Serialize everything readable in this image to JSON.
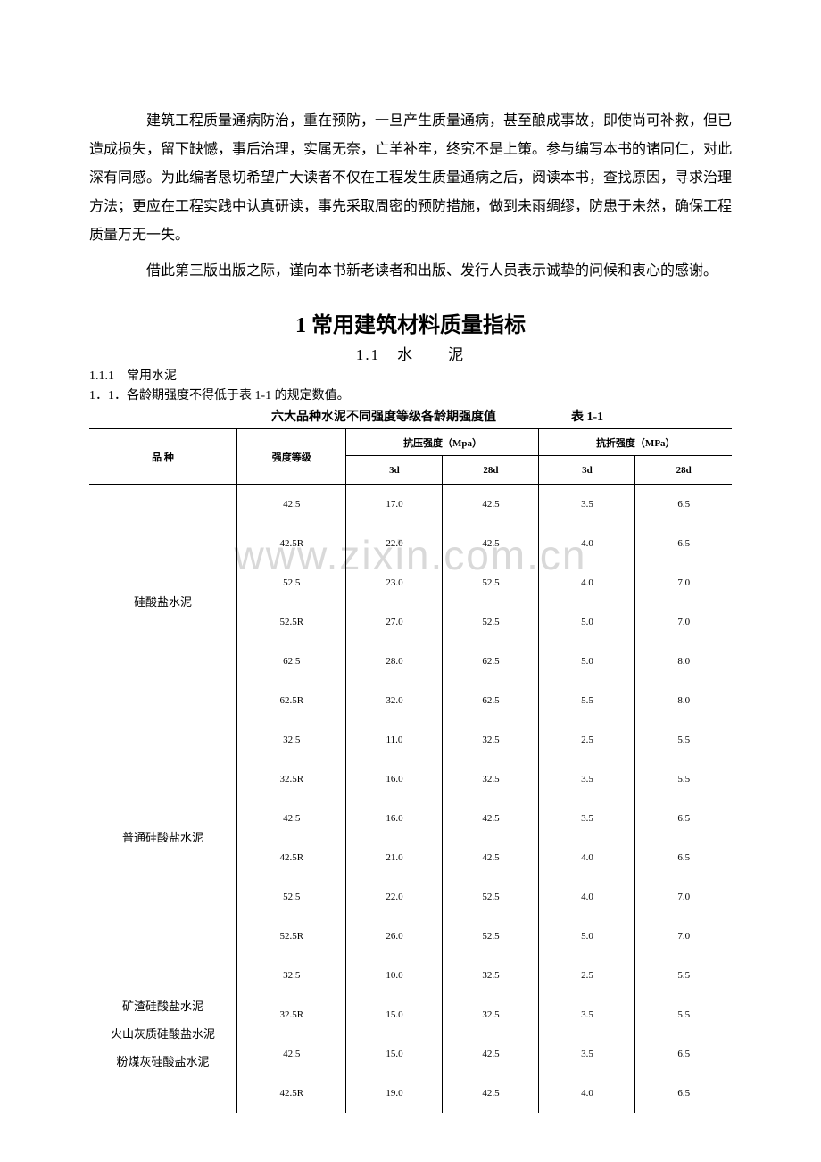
{
  "paragraphs": {
    "p1": "建筑工程质量通病防治，重在预防，一旦产生质量通病，甚至酿成事故，即使尚可补救，但已造成损失，留下缺憾，事后治理，实属无奈，亡羊补牢，终究不是上策。参与编写本书的诸同仁，对此深有同感。为此编者恳切希望广大读者不仅在工程发生质量通病之后，阅读本书，查找原因，寻求治理方法；更应在工程实践中认真研读，事先采取周密的预防措施，做到未雨绸缪，防患于未然，确保工程质量万无一失。",
    "p2": "借此第三版出版之际，谨向本书新老读者和出版、发行人员表示诚挚的问候和衷心的感谢。"
  },
  "headings": {
    "h1": "1 常用建筑材料质量指标",
    "h2": "1.1　水　　泥",
    "h3": "1.1.1　常用水泥",
    "h3line": "1．1．各龄期强度不得低于表 1-1 的规定数值。"
  },
  "table": {
    "title": "六大品种水泥不同强度等级各龄期强度值",
    "code": "表 1-1",
    "header": {
      "variety": "品  种",
      "grade": "强度等级",
      "comp": "抗压强度（Mpa）",
      "flex": "抗折强度（MPa）",
      "d3": "3d",
      "d28": "28d"
    },
    "sections": [
      {
        "variety_lines": [
          "硅酸盐水泥"
        ],
        "rows": [
          {
            "grade": "42.5",
            "c3": "17.0",
            "c28": "42.5",
            "f3": "3.5",
            "f28": "6.5"
          },
          {
            "grade": "42.5R",
            "c3": "22.0",
            "c28": "42.5",
            "f3": "4.0",
            "f28": "6.5"
          },
          {
            "grade": "52.5",
            "c3": "23.0",
            "c28": "52.5",
            "f3": "4.0",
            "f28": "7.0"
          },
          {
            "grade": "52.5R",
            "c3": "27.0",
            "c28": "52.5",
            "f3": "5.0",
            "f28": "7.0"
          },
          {
            "grade": "62.5",
            "c3": "28.0",
            "c28": "62.5",
            "f3": "5.0",
            "f28": "8.0"
          },
          {
            "grade": "62.5R",
            "c3": "32.0",
            "c28": "62.5",
            "f3": "5.5",
            "f28": "8.0"
          }
        ]
      },
      {
        "variety_lines": [
          "普通硅酸盐水泥"
        ],
        "rows": [
          {
            "grade": "32.5",
            "c3": "11.0",
            "c28": "32.5",
            "f3": "2.5",
            "f28": "5.5"
          },
          {
            "grade": "32.5R",
            "c3": "16.0",
            "c28": "32.5",
            "f3": "3.5",
            "f28": "5.5"
          },
          {
            "grade": "42.5",
            "c3": "16.0",
            "c28": "42.5",
            "f3": "3.5",
            "f28": "6.5"
          },
          {
            "grade": "42.5R",
            "c3": "21.0",
            "c28": "42.5",
            "f3": "4.0",
            "f28": "6.5"
          },
          {
            "grade": "52.5",
            "c3": "22.0",
            "c28": "52.5",
            "f3": "4.0",
            "f28": "7.0"
          },
          {
            "grade": "52.5R",
            "c3": "26.0",
            "c28": "52.5",
            "f3": "5.0",
            "f28": "7.0"
          }
        ]
      },
      {
        "variety_lines": [
          "矿渣硅酸盐水泥",
          "火山灰质硅酸盐水泥",
          "粉煤灰硅酸盐水泥"
        ],
        "rows": [
          {
            "grade": "32.5",
            "c3": "10.0",
            "c28": "32.5",
            "f3": "2.5",
            "f28": "5.5"
          },
          {
            "grade": "32.5R",
            "c3": "15.0",
            "c28": "32.5",
            "f3": "3.5",
            "f28": "5.5"
          },
          {
            "grade": "42.5",
            "c3": "15.0",
            "c28": "42.5",
            "f3": "3.5",
            "f28": "6.5"
          },
          {
            "grade": "42.5R",
            "c3": "19.0",
            "c28": "42.5",
            "f3": "4.0",
            "f28": "6.5"
          }
        ]
      }
    ]
  },
  "watermark": "www.zixin.com.cn"
}
